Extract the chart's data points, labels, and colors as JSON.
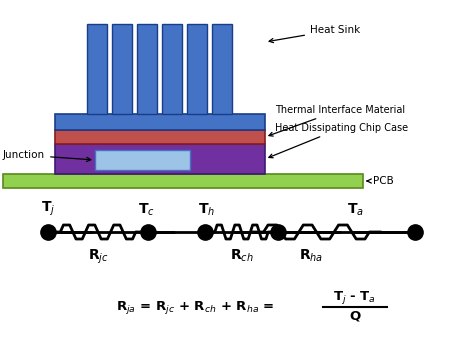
{
  "bg_color": "#ffffff",
  "heatsink_color": "#4472C4",
  "tim_color": "#C0504D",
  "chip_case_color": "#7030A0",
  "pcb_color": "#92D050",
  "junction_inner_color": "#9DC3E6",
  "labels": {
    "heat_sink": "Heat Sink",
    "tim": "Thermal Interface Material",
    "chip_case": "Heat Dissipating Chip Case",
    "junction": "Junction",
    "pcb": "PCB"
  },
  "circuit": {
    "nodes": [
      "T$_j$",
      "T$_c$",
      "T$_h$",
      "T$_a$"
    ],
    "resistors": [
      "R$_{jc}$",
      "R$_{ch}$",
      "R$_{ha}$"
    ]
  }
}
